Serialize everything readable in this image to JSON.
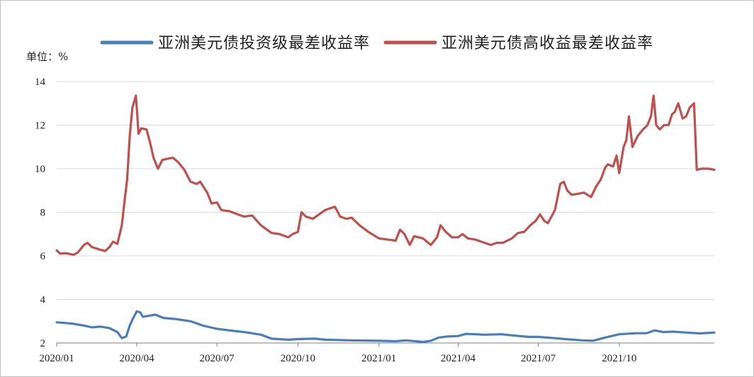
{
  "chart_data": {
    "type": "line",
    "title": "",
    "unit_label": "单位：%",
    "xlabel": "",
    "ylabel": "",
    "ylim": [
      2,
      14
    ],
    "y_ticks": [
      2,
      4,
      6,
      8,
      10,
      12,
      14
    ],
    "x_range": [
      "2020-01-01",
      "2022-01-17"
    ],
    "x_ticks": [
      {
        "label": "2020/01",
        "date": "2020-01-01"
      },
      {
        "label": "2020/04",
        "date": "2020-04-01"
      },
      {
        "label": "2020/07",
        "date": "2020-07-01"
      },
      {
        "label": "2020/10",
        "date": "2020-10-01"
      },
      {
        "label": "2021/01",
        "date": "2021-01-01"
      },
      {
        "label": "2021/04",
        "date": "2021-04-01"
      },
      {
        "label": "2021/07",
        "date": "2021-07-01"
      },
      {
        "label": "2021/10",
        "date": "2021-10-01"
      }
    ],
    "grid": true,
    "legend_position": "top",
    "series": [
      {
        "name": "亚洲美元债投资级最差收益率",
        "color": "#4a7ebb",
        "points": [
          [
            "2020-01-01",
            2.95
          ],
          [
            "2020-01-10",
            2.92
          ],
          [
            "2020-01-20",
            2.88
          ],
          [
            "2020-02-01",
            2.8
          ],
          [
            "2020-02-10",
            2.72
          ],
          [
            "2020-02-20",
            2.75
          ],
          [
            "2020-03-01",
            2.68
          ],
          [
            "2020-03-10",
            2.5
          ],
          [
            "2020-03-15",
            2.22
          ],
          [
            "2020-03-20",
            2.3
          ],
          [
            "2020-03-24",
            2.8
          ],
          [
            "2020-03-28",
            3.15
          ],
          [
            "2020-04-01",
            3.45
          ],
          [
            "2020-04-05",
            3.4
          ],
          [
            "2020-04-08",
            3.2
          ],
          [
            "2020-04-15",
            3.25
          ],
          [
            "2020-04-22",
            3.3
          ],
          [
            "2020-05-01",
            3.15
          ],
          [
            "2020-05-15",
            3.1
          ],
          [
            "2020-06-01",
            3.0
          ],
          [
            "2020-06-15",
            2.8
          ],
          [
            "2020-07-01",
            2.65
          ],
          [
            "2020-07-15",
            2.58
          ],
          [
            "2020-08-01",
            2.5
          ],
          [
            "2020-08-20",
            2.38
          ],
          [
            "2020-09-01",
            2.2
          ],
          [
            "2020-09-20",
            2.15
          ],
          [
            "2020-10-01",
            2.18
          ],
          [
            "2020-10-20",
            2.2
          ],
          [
            "2020-11-01",
            2.15
          ],
          [
            "2020-12-01",
            2.12
          ],
          [
            "2021-01-01",
            2.1
          ],
          [
            "2021-01-20",
            2.08
          ],
          [
            "2021-02-01",
            2.12
          ],
          [
            "2021-02-20",
            2.05
          ],
          [
            "2021-03-01",
            2.1
          ],
          [
            "2021-03-10",
            2.25
          ],
          [
            "2021-03-20",
            2.3
          ],
          [
            "2021-04-01",
            2.32
          ],
          [
            "2021-04-10",
            2.42
          ],
          [
            "2021-05-01",
            2.38
          ],
          [
            "2021-05-20",
            2.4
          ],
          [
            "2021-06-01",
            2.35
          ],
          [
            "2021-06-20",
            2.28
          ],
          [
            "2021-07-01",
            2.28
          ],
          [
            "2021-07-20",
            2.22
          ],
          [
            "2021-08-01",
            2.18
          ],
          [
            "2021-08-20",
            2.12
          ],
          [
            "2021-09-01",
            2.1
          ],
          [
            "2021-09-15",
            2.25
          ],
          [
            "2021-10-01",
            2.4
          ],
          [
            "2021-10-20",
            2.45
          ],
          [
            "2021-11-01",
            2.45
          ],
          [
            "2021-11-10",
            2.58
          ],
          [
            "2021-11-20",
            2.5
          ],
          [
            "2021-12-01",
            2.52
          ],
          [
            "2021-12-15",
            2.48
          ],
          [
            "2022-01-01",
            2.44
          ],
          [
            "2022-01-17",
            2.48
          ]
        ]
      },
      {
        "name": "亚洲美元债高收益最差收益率",
        "color": "#c0504d",
        "points": [
          [
            "2020-01-01",
            6.25
          ],
          [
            "2020-01-05",
            6.1
          ],
          [
            "2020-01-12",
            6.12
          ],
          [
            "2020-01-20",
            6.05
          ],
          [
            "2020-01-25",
            6.15
          ],
          [
            "2020-02-01",
            6.5
          ],
          [
            "2020-02-05",
            6.6
          ],
          [
            "2020-02-10",
            6.4
          ],
          [
            "2020-02-18",
            6.3
          ],
          [
            "2020-02-25",
            6.22
          ],
          [
            "2020-03-01",
            6.4
          ],
          [
            "2020-03-05",
            6.65
          ],
          [
            "2020-03-10",
            6.55
          ],
          [
            "2020-03-15",
            7.4
          ],
          [
            "2020-03-18",
            8.5
          ],
          [
            "2020-03-21",
            9.5
          ],
          [
            "2020-03-24",
            11.5
          ],
          [
            "2020-03-27",
            12.8
          ],
          [
            "2020-03-31",
            13.35
          ],
          [
            "2020-04-03",
            11.6
          ],
          [
            "2020-04-06",
            11.85
          ],
          [
            "2020-04-12",
            11.8
          ],
          [
            "2020-04-16",
            11.2
          ],
          [
            "2020-04-20",
            10.5
          ],
          [
            "2020-04-25",
            10.0
          ],
          [
            "2020-04-30",
            10.4
          ],
          [
            "2020-05-05",
            10.45
          ],
          [
            "2020-05-12",
            10.5
          ],
          [
            "2020-05-18",
            10.3
          ],
          [
            "2020-05-25",
            9.95
          ],
          [
            "2020-06-01",
            9.4
          ],
          [
            "2020-06-08",
            9.3
          ],
          [
            "2020-06-12",
            9.4
          ],
          [
            "2020-06-20",
            8.9
          ],
          [
            "2020-06-25",
            8.4
          ],
          [
            "2020-07-01",
            8.45
          ],
          [
            "2020-07-06",
            8.1
          ],
          [
            "2020-07-15",
            8.05
          ],
          [
            "2020-07-25",
            7.9
          ],
          [
            "2020-08-01",
            7.8
          ],
          [
            "2020-08-10",
            7.85
          ],
          [
            "2020-08-20",
            7.4
          ],
          [
            "2020-09-01",
            7.05
          ],
          [
            "2020-09-10",
            7.0
          ],
          [
            "2020-09-20",
            6.85
          ],
          [
            "2020-09-25",
            7.0
          ],
          [
            "2020-10-01",
            7.1
          ],
          [
            "2020-10-05",
            8.0
          ],
          [
            "2020-10-10",
            7.8
          ],
          [
            "2020-10-18",
            7.7
          ],
          [
            "2020-10-25",
            7.9
          ],
          [
            "2020-11-01",
            8.1
          ],
          [
            "2020-11-08",
            8.2
          ],
          [
            "2020-11-12",
            8.25
          ],
          [
            "2020-11-18",
            7.8
          ],
          [
            "2020-11-25",
            7.7
          ],
          [
            "2020-12-01",
            7.75
          ],
          [
            "2020-12-10",
            7.4
          ],
          [
            "2020-12-20",
            7.1
          ],
          [
            "2021-01-01",
            6.8
          ],
          [
            "2021-01-10",
            6.75
          ],
          [
            "2021-01-20",
            6.7
          ],
          [
            "2021-01-25",
            7.2
          ],
          [
            "2021-01-30",
            7.0
          ],
          [
            "2021-02-05",
            6.5
          ],
          [
            "2021-02-10",
            6.9
          ],
          [
            "2021-02-20",
            6.8
          ],
          [
            "2021-03-01",
            6.5
          ],
          [
            "2021-03-08",
            6.85
          ],
          [
            "2021-03-12",
            7.4
          ],
          [
            "2021-03-18",
            7.1
          ],
          [
            "2021-03-25",
            6.85
          ],
          [
            "2021-04-01",
            6.85
          ],
          [
            "2021-04-06",
            7.0
          ],
          [
            "2021-04-12",
            6.8
          ],
          [
            "2021-04-20",
            6.75
          ],
          [
            "2021-05-01",
            6.6
          ],
          [
            "2021-05-08",
            6.5
          ],
          [
            "2021-05-15",
            6.6
          ],
          [
            "2021-05-22",
            6.6
          ],
          [
            "2021-06-01",
            6.8
          ],
          [
            "2021-06-08",
            7.05
          ],
          [
            "2021-06-15",
            7.1
          ],
          [
            "2021-06-22",
            7.4
          ],
          [
            "2021-06-28",
            7.6
          ],
          [
            "2021-07-03",
            7.9
          ],
          [
            "2021-07-08",
            7.6
          ],
          [
            "2021-07-12",
            7.5
          ],
          [
            "2021-07-20",
            8.1
          ],
          [
            "2021-07-26",
            9.3
          ],
          [
            "2021-07-30",
            9.4
          ],
          [
            "2021-08-03",
            9.0
          ],
          [
            "2021-08-08",
            8.8
          ],
          [
            "2021-08-15",
            8.85
          ],
          [
            "2021-08-22",
            8.9
          ],
          [
            "2021-08-30",
            8.7
          ],
          [
            "2021-09-05",
            9.2
          ],
          [
            "2021-09-10",
            9.5
          ],
          [
            "2021-09-15",
            10.05
          ],
          [
            "2021-09-18",
            10.2
          ],
          [
            "2021-09-24",
            10.1
          ],
          [
            "2021-09-28",
            10.6
          ],
          [
            "2021-10-01",
            9.8
          ],
          [
            "2021-10-06",
            11.0
          ],
          [
            "2021-10-09",
            11.3
          ],
          [
            "2021-10-12",
            12.4
          ],
          [
            "2021-10-16",
            11.0
          ],
          [
            "2021-10-22",
            11.5
          ],
          [
            "2021-10-28",
            11.8
          ],
          [
            "2021-11-02",
            12.0
          ],
          [
            "2021-11-06",
            12.4
          ],
          [
            "2021-11-09",
            13.35
          ],
          [
            "2021-11-12",
            12.0
          ],
          [
            "2021-11-16",
            11.8
          ],
          [
            "2021-11-21",
            12.0
          ],
          [
            "2021-11-26",
            12.0
          ],
          [
            "2021-11-30",
            12.5
          ],
          [
            "2021-12-03",
            12.6
          ],
          [
            "2021-12-07",
            13.0
          ],
          [
            "2021-12-12",
            12.3
          ],
          [
            "2021-12-16",
            12.4
          ],
          [
            "2021-12-20",
            12.8
          ],
          [
            "2021-12-25",
            13.0
          ],
          [
            "2021-12-28",
            9.95
          ],
          [
            "2022-01-03",
            10.0
          ],
          [
            "2022-01-10",
            10.0
          ],
          [
            "2022-01-17",
            9.95
          ]
        ]
      }
    ]
  }
}
